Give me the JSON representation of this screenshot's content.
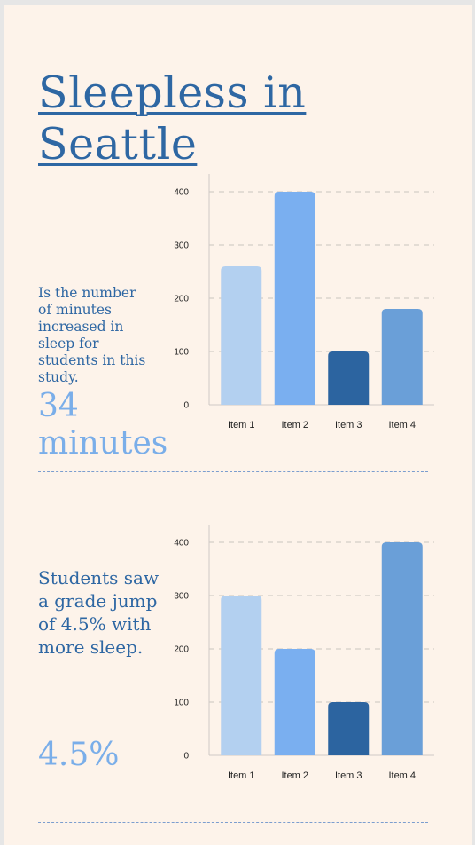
{
  "title": "Sleepless in Seattle",
  "section1": {
    "caption": "Is the number of minutes increased in sleep for students in this study.",
    "stat": "34 minutes"
  },
  "section2": {
    "caption": "Students saw a grade jump of 4.5% with more sleep.",
    "stat": "4.5%"
  },
  "colors": {
    "background": "#fdf3ea",
    "heading": "#2e67a3",
    "stat": "#7aaee9",
    "bars": [
      "#b3d0f0",
      "#7aaff0",
      "#2c64a0",
      "#6a9fd8"
    ]
  },
  "chart_data": [
    {
      "type": "bar",
      "categories": [
        "Item 1",
        "Item 2",
        "Item 3",
        "Item 4"
      ],
      "values": [
        260,
        400,
        100,
        180
      ],
      "ylim": [
        0,
        400
      ],
      "yticks": [
        0,
        100,
        200,
        300,
        400
      ],
      "grid": true,
      "xlabel": "",
      "ylabel": "",
      "title": ""
    },
    {
      "type": "bar",
      "categories": [
        "Item 1",
        "Item 2",
        "Item 3",
        "Item 4"
      ],
      "values": [
        300,
        200,
        100,
        400
      ],
      "ylim": [
        0,
        400
      ],
      "yticks": [
        0,
        100,
        200,
        300,
        400
      ],
      "grid": true,
      "xlabel": "",
      "ylabel": "",
      "title": ""
    }
  ]
}
